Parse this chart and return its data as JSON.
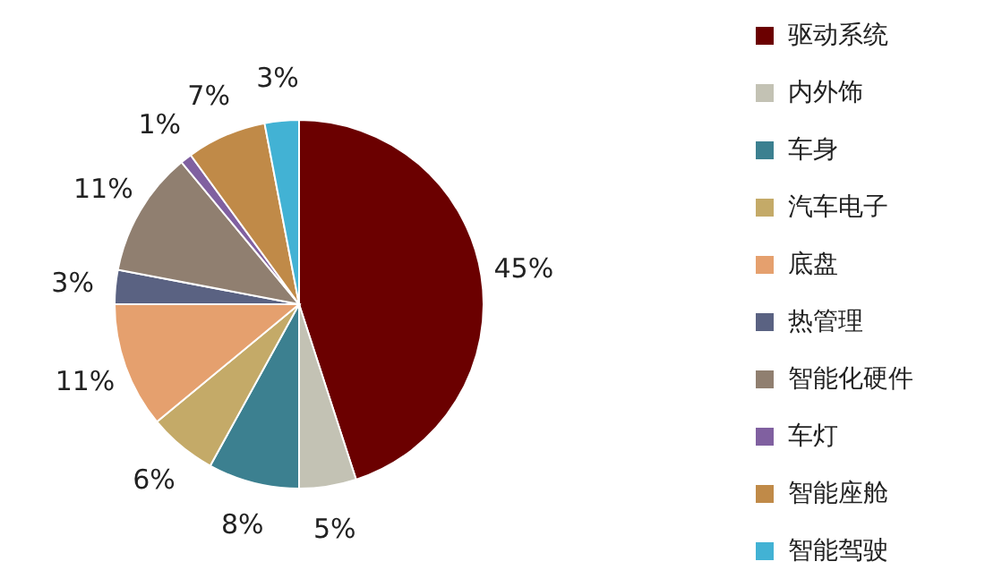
{
  "chart_data": {
    "type": "pie",
    "categories": [
      "驱动系统",
      "内外饰",
      "车身",
      "汽车电子",
      "底盘",
      "热管理",
      "智能化硬件",
      "车灯",
      "智能座舱",
      "智能驾驶"
    ],
    "values": [
      45,
      5,
      8,
      6,
      11,
      3,
      11,
      1,
      7,
      3
    ],
    "value_labels": [
      "45%",
      "5%",
      "8%",
      "6%",
      "11%",
      "3%",
      "11%",
      "1%",
      "7%",
      "3%"
    ],
    "colors": [
      "#6b0000",
      "#c3c2b4",
      "#3c8090",
      "#c4aa68",
      "#e5a06e",
      "#5a6282",
      "#907f70",
      "#8060a0",
      "#c08a48",
      "#42b2d4"
    ],
    "legend": "right"
  }
}
